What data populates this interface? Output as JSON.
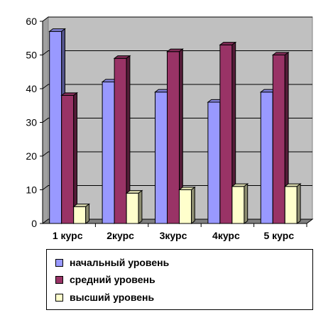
{
  "chart_data": {
    "type": "bar",
    "categories": [
      "1 курс",
      "2курс",
      "3курс",
      "4курс",
      "5 курс"
    ],
    "series": [
      {
        "name": "начальный уровень",
        "values": [
          57,
          42,
          39,
          36,
          39
        ],
        "color": "#9999ff"
      },
      {
        "name": "средний уровень",
        "values": [
          38,
          49,
          51,
          53,
          50
        ],
        "color": "#993366"
      },
      {
        "name": "высший уровень",
        "values": [
          5,
          9,
          10,
          11,
          11
        ],
        "color": "#ffffcc"
      }
    ],
    "title": "",
    "xlabel": "",
    "ylabel": "",
    "ylim": [
      0,
      60
    ],
    "yticks": [
      0,
      10,
      20,
      30,
      40,
      50,
      60
    ],
    "grid": true,
    "legend": "bottom",
    "plot_background": "#c0c0c0"
  }
}
